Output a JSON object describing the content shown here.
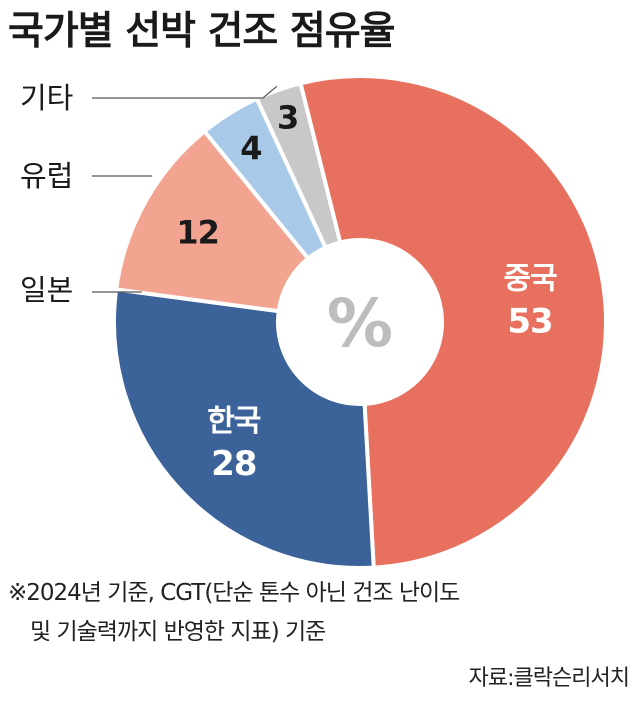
{
  "title": "국가별 선박 건조 점유율",
  "chart_data": {
    "type": "pie",
    "donut": true,
    "unit": "%",
    "categories": [
      "중국",
      "한국",
      "일본",
      "유럽",
      "기타"
    ],
    "values": [
      53,
      28,
      12,
      4,
      3
    ],
    "colors": [
      "#e8705f",
      "#3b6299",
      "#f3a490",
      "#a9c9e8",
      "#c8c8c8"
    ],
    "label_position": [
      "inside",
      "inside",
      "outside",
      "outside",
      "outside"
    ]
  },
  "note": {
    "line1": "※2024년 기준, CGT(단순 톤수 아닌 건조 난이도",
    "line2": "및 기술력까지 반영한 지표) 기준"
  },
  "source": "자료:클락슨리서치"
}
